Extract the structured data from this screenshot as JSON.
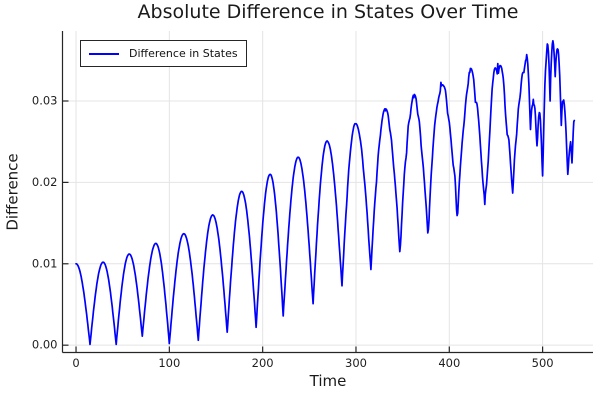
{
  "chart_data": {
    "type": "line",
    "title": "Absolute Difference in States Over Time",
    "xlabel": "Time",
    "ylabel": "Difference",
    "xlim": [
      -14.5,
      554
    ],
    "ylim": [
      -0.0009,
      0.0386
    ],
    "xticks": [
      0,
      100,
      200,
      300,
      400,
      500
    ],
    "xtick_labels": [
      "0",
      "100",
      "200",
      "300",
      "400",
      "500"
    ],
    "yticks": [
      0.0,
      0.01,
      0.02,
      0.03
    ],
    "ytick_labels": [
      "0.00",
      "0.01",
      "0.02",
      "0.03"
    ],
    "grid": true,
    "legend": {
      "position": "top-left",
      "entries": [
        {
          "label": "Difference in States",
          "color": "#0000ff"
        }
      ]
    },
    "series": [
      {
        "name": "Difference in States",
        "color": "#0000ff",
        "first_extremum": "peak",
        "extrema": [
          [
            0,
            0.01
          ],
          [
            15,
            0.0001
          ],
          [
            29,
            0.0102
          ],
          [
            43,
            0.0001
          ],
          [
            57,
            0.0112
          ],
          [
            71,
            0.0011
          ],
          [
            85.5,
            0.0125
          ],
          [
            100,
            0.0002
          ],
          [
            115.5,
            0.0137
          ],
          [
            131,
            0.0006
          ],
          [
            146.5,
            0.016
          ],
          [
            162,
            0.0016
          ],
          [
            177.5,
            0.0189
          ],
          [
            193,
            0.0022
          ],
          [
            208,
            0.021
          ],
          [
            222,
            0.0036
          ],
          [
            238,
            0.0231
          ],
          [
            254,
            0.0051
          ],
          [
            269,
            0.0251
          ],
          [
            285,
            0.0073
          ],
          [
            299.5,
            0.0272
          ],
          [
            316,
            0.0093
          ],
          [
            331.5,
            0.0288
          ],
          [
            347,
            0.0115
          ],
          [
            362,
            0.0304
          ],
          [
            377,
            0.0138
          ],
          [
            391,
            0.0323
          ],
          [
            409,
            0.0162
          ],
          [
            422,
            0.0335
          ],
          [
            438,
            0.0173
          ],
          [
            452,
            0.0346
          ],
          [
            468,
            0.0187
          ],
          [
            483,
            0.0357
          ],
          [
            487,
            0.0265
          ],
          [
            490,
            0.0302
          ],
          [
            494,
            0.0245
          ],
          [
            497,
            0.0285
          ],
          [
            500,
            0.0208
          ],
          [
            505,
            0.037
          ],
          [
            508,
            0.03
          ],
          [
            511,
            0.0374
          ],
          [
            513.5,
            0.033
          ],
          [
            516,
            0.0364
          ],
          [
            520,
            0.027
          ],
          [
            522,
            0.03
          ],
          [
            527,
            0.021
          ],
          [
            530,
            0.025
          ],
          [
            531.5,
            0.0224
          ],
          [
            534,
            0.0276
          ]
        ],
        "noise": {
          "start_t": 265,
          "max_amplitude": 0.0022
        }
      }
    ]
  },
  "colors": {
    "line": "#0000ff",
    "grid": "#e4e4e4",
    "axis": "#262626",
    "text": "#1f1f1f",
    "background": "#ffffff",
    "legend_border": "#262626"
  }
}
